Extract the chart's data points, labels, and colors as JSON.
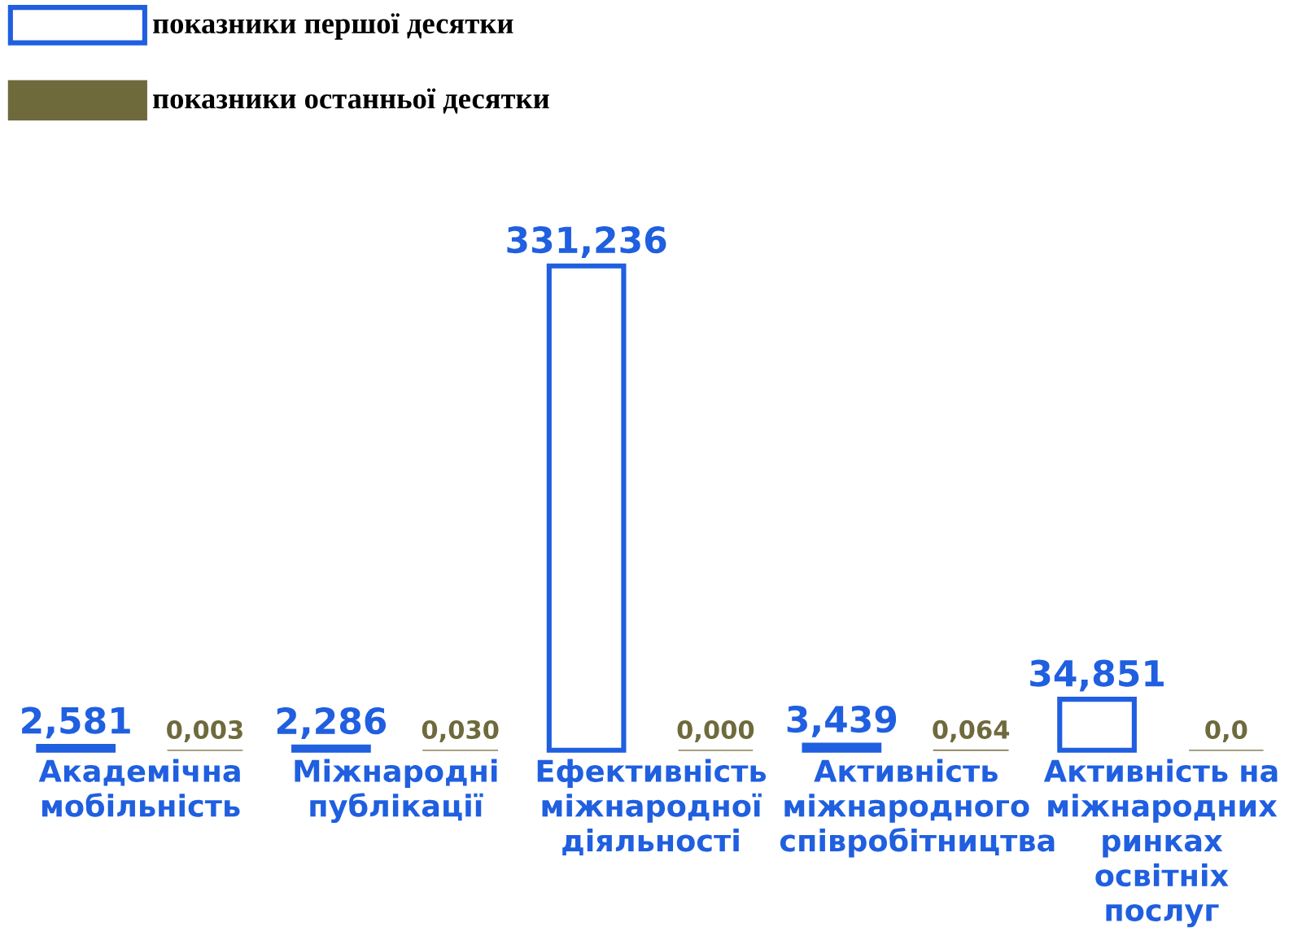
{
  "chart_data": {
    "type": "bar",
    "categories": [
      "Академічна мобільність",
      "Міжнародні публікації",
      "Ефективність міжнародної діяльності",
      "Активність міжнародного співробітництва",
      "Активність на міжнародних ринках освітніх послуг"
    ],
    "series": [
      {
        "name": "показники першої десятки",
        "color": "#1f5fe0",
        "values": [
          2.581,
          2.286,
          331.236,
          3.439,
          34.851
        ],
        "value_labels": [
          "2,581",
          "2,286",
          "331,236",
          "3,439",
          "34,851"
        ]
      },
      {
        "name": "показники останньої десятки",
        "color": "#6e6a3c",
        "values": [
          0.003,
          0.03,
          0.0,
          0.064,
          0.0
        ],
        "value_labels": [
          "0,003",
          "0,030",
          "0,000",
          "0,064",
          "0,0"
        ]
      }
    ],
    "legend": "top left"
  }
}
